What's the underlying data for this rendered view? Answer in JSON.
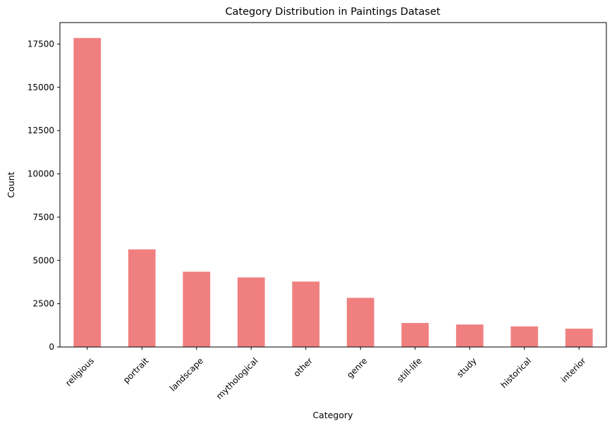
{
  "chart_data": {
    "type": "bar",
    "title": "Category Distribution in Paintings Dataset",
    "xlabel": "Category",
    "ylabel": "Count",
    "categories": [
      "religious",
      "portrait",
      "landscape",
      "mythological",
      "other",
      "genre",
      "still-life",
      "study",
      "historical",
      "interior"
    ],
    "values": [
      17850,
      5640,
      4350,
      4020,
      3780,
      2840,
      1390,
      1300,
      1190,
      1060
    ],
    "ylim": [
      0,
      18740
    ],
    "yticks": [
      "0",
      "2500",
      "5000",
      "7500",
      "10000",
      "12500",
      "15000",
      "17500"
    ],
    "ytick_values": [
      0,
      2500,
      5000,
      7500,
      10000,
      12500,
      15000,
      17500
    ],
    "bar_color": "#F08080",
    "grid": false,
    "legend": false,
    "xtick_rotation": 45
  }
}
